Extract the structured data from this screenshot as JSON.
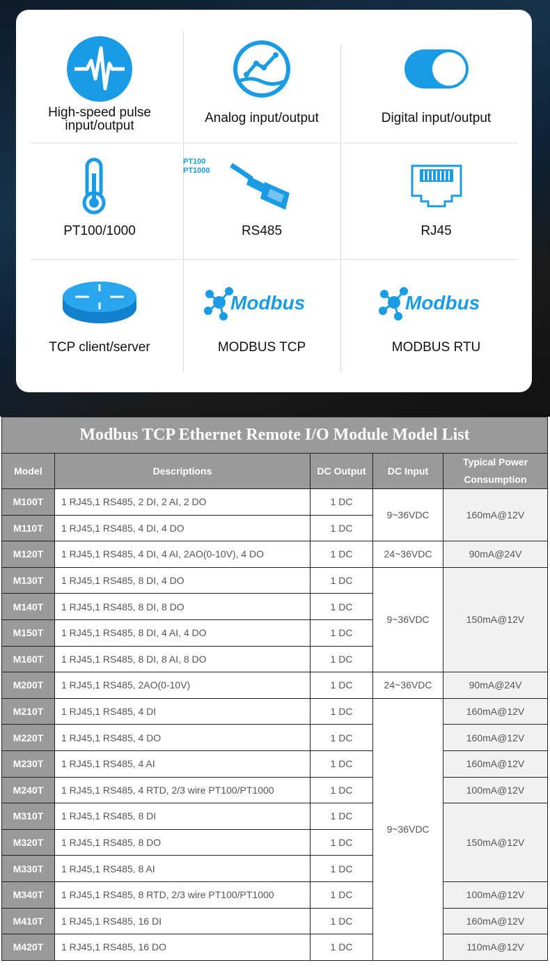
{
  "features": [
    {
      "label": "High-speed pulse input/output",
      "icon": "pulse-icon"
    },
    {
      "label": "Analog input/output",
      "icon": "analog-chart-icon"
    },
    {
      "label": "Digital input/output",
      "icon": "toggle-switch-icon"
    },
    {
      "label": "PT100/1000",
      "icon": "thermometer-icon",
      "icon_text": [
        "PT100",
        "PT1000"
      ]
    },
    {
      "label": "RS485",
      "icon": "serial-connector-icon"
    },
    {
      "label": "RJ45",
      "icon": "ethernet-port-icon"
    },
    {
      "label": "TCP client/server",
      "icon": "router-icon"
    },
    {
      "label": "MODBUS TCP",
      "icon": "modbus-logo",
      "logo_text": "Modbus"
    },
    {
      "label": "MODBUS RTU",
      "icon": "modbus-logo",
      "logo_text": "Modbus"
    }
  ],
  "colors": {
    "accent": "#1a9be6",
    "header_gray": "#9a9a9a",
    "power_bg": "#f1f1f1"
  },
  "table": {
    "title": "Modbus TCP Ethernet Remote I/O Module Model List",
    "headers": [
      "Model",
      "Descriptions",
      "DC Output",
      "DC Input",
      "Typical Power Consumption"
    ],
    "rows": [
      {
        "model": "M100T",
        "desc": "1 RJ45,1 RS485, 2 DI, 2 AI, 2 DO",
        "output": "1 DC",
        "input": "9~36VDC",
        "input_span": 2,
        "power": "160mA@12V",
        "power_span": 2
      },
      {
        "model": "M110T",
        "desc": "1 RJ45,1 RS485, 4 DI, 4 DO",
        "output": "1 DC"
      },
      {
        "model": "M120T",
        "desc": "1 RJ45,1 RS485, 4 DI, 4 AI, 2AO(0-10V), 4 DO",
        "output": "1 DC",
        "input": "24~36VDC",
        "input_span": 1,
        "power": "90mA@24V",
        "power_span": 1
      },
      {
        "model": "M130T",
        "desc": "1 RJ45,1 RS485, 8 DI, 4 DO",
        "output": "1 DC",
        "input": "9~36VDC",
        "input_span": 4,
        "power": "150mA@12V",
        "power_span": 4
      },
      {
        "model": "M140T",
        "desc": "1 RJ45,1 RS485, 8 DI, 8 DO",
        "output": "1 DC"
      },
      {
        "model": "M150T",
        "desc": "1 RJ45,1 RS485, 8 DI, 4 AI, 4 DO",
        "output": "1 DC"
      },
      {
        "model": "M160T",
        "desc": "1 RJ45,1 RS485, 8 DI, 8 AI, 8 DO",
        "output": "1 DC"
      },
      {
        "model": "M200T",
        "desc": "1 RJ45,1 RS485, 2AO(0-10V)",
        "output": "1 DC",
        "input": "24~36VDC",
        "input_span": 1,
        "power": "90mA@24V",
        "power_span": 1
      },
      {
        "model": "M210T",
        "desc": "1 RJ45,1 RS485, 4 DI",
        "output": "1 DC",
        "input": "9~36VDC",
        "input_span": 11,
        "power": "160mA@12V",
        "power_span": 1
      },
      {
        "model": "M220T",
        "desc": "1 RJ45,1 RS485, 4 DO",
        "output": "1 DC",
        "power": "160mA@12V",
        "power_span": 1
      },
      {
        "model": "M230T",
        "desc": "1 RJ45,1 RS485, 4 AI",
        "output": "1 DC",
        "power": "160mA@12V",
        "power_span": 1
      },
      {
        "model": "M240T",
        "desc": "1 RJ45,1 RS485, 4 RTD, 2/3 wire PT100/PT1000",
        "output": "1 DC",
        "power": "100mA@12V",
        "power_span": 1
      },
      {
        "model": "M310T",
        "desc": "1 RJ45,1 RS485, 8 DI",
        "output": "1 DC",
        "power": "150mA@12V",
        "power_span": 3
      },
      {
        "model": "M320T",
        "desc": "1 RJ45,1 RS485, 8 DO",
        "output": "1 DC"
      },
      {
        "model": "M330T",
        "desc": "1 RJ45,1 RS485, 8 AI",
        "output": "1 DC"
      },
      {
        "model": "M340T",
        "desc": "1 RJ45,1 RS485, 8 RTD, 2/3 wire PT100/PT1000",
        "output": "1 DC",
        "power": "100mA@12V",
        "power_span": 1
      },
      {
        "model": "M410T",
        "desc": "1 RJ45,1 RS485, 16 DI",
        "output": "1 DC",
        "power": "160mA@12V",
        "power_span": 1
      },
      {
        "model": "M420T",
        "desc": "1 RJ45,1 RS485, 16 DO",
        "output": "1 DC",
        "power": "110mA@12V",
        "power_span": 1
      }
    ]
  }
}
